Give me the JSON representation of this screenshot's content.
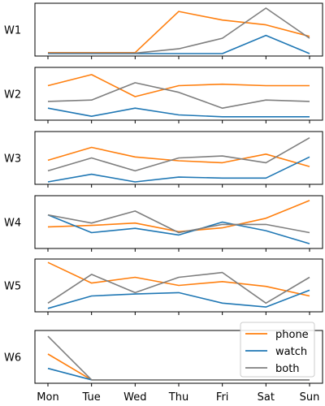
{
  "chart_data": {
    "type": "line",
    "days": [
      "Mon",
      "Tue",
      "Wed",
      "Thu",
      "Fri",
      "Sat",
      "Sun"
    ],
    "legend_position": "lower-right of last panel",
    "grid": false,
    "series_styles": [
      {
        "key": "phone",
        "label": "phone",
        "color": "#ff7f0e"
      },
      {
        "key": "watch",
        "label": "watch",
        "color": "#1f77b4"
      },
      {
        "key": "both",
        "label": "both",
        "color": "#7f7f7f"
      }
    ],
    "panels": [
      {
        "label": "W1",
        "ylim": [
          0,
          1
        ],
        "series": {
          "phone": [
            0.02,
            0.02,
            0.02,
            0.88,
            0.7,
            0.6,
            0.36
          ],
          "watch": [
            0.0,
            0.0,
            0.0,
            0.0,
            0.0,
            0.38,
            0.0
          ],
          "both": [
            0.01,
            0.01,
            0.01,
            0.1,
            0.32,
            0.95,
            0.32
          ]
        }
      },
      {
        "label": "W2",
        "ylim": [
          0,
          1
        ],
        "series": {
          "phone": [
            0.67,
            0.9,
            0.44,
            0.67,
            0.7,
            0.67,
            0.67
          ],
          "watch": [
            0.2,
            0.03,
            0.2,
            0.06,
            0.02,
            0.02,
            0.02
          ],
          "both": [
            0.34,
            0.37,
            0.73,
            0.53,
            0.2,
            0.37,
            0.34
          ]
        }
      },
      {
        "label": "W3",
        "ylim": [
          0,
          1
        ],
        "series": {
          "phone": [
            0.45,
            0.72,
            0.52,
            0.44,
            0.4,
            0.58,
            0.32
          ],
          "watch": [
            0.0,
            0.16,
            0.0,
            0.1,
            0.08,
            0.08,
            0.52
          ],
          "both": [
            0.23,
            0.5,
            0.23,
            0.5,
            0.54,
            0.4,
            0.92
          ]
        }
      },
      {
        "label": "W4",
        "ylim": [
          0,
          1
        ],
        "series": {
          "phone": [
            0.4,
            0.43,
            0.48,
            0.3,
            0.38,
            0.58,
            0.95
          ],
          "watch": [
            0.65,
            0.28,
            0.37,
            0.23,
            0.5,
            0.32,
            0.05
          ],
          "both": [
            0.65,
            0.48,
            0.73,
            0.28,
            0.45,
            0.45,
            0.28
          ]
        }
      },
      {
        "label": "W5",
        "ylim": [
          0,
          1
        ],
        "series": {
          "phone": [
            0.98,
            0.55,
            0.67,
            0.5,
            0.58,
            0.48,
            0.28
          ],
          "watch": [
            0.02,
            0.28,
            0.32,
            0.35,
            0.13,
            0.05,
            0.4
          ],
          "both": [
            0.13,
            0.73,
            0.35,
            0.67,
            0.77,
            0.13,
            0.67
          ]
        }
      },
      {
        "label": "W6",
        "ylim": [
          0,
          1
        ],
        "series": {
          "phone": [
            0.56,
            0.02,
            0.02,
            0.02,
            0.02,
            0.02,
            0.02
          ],
          "watch": [
            0.26,
            0.02,
            0.02,
            0.02,
            0.02,
            0.02,
            0.02
          ],
          "both": [
            0.93,
            0.02,
            0.02,
            0.02,
            0.02,
            0.02,
            0.02
          ]
        }
      }
    ]
  }
}
